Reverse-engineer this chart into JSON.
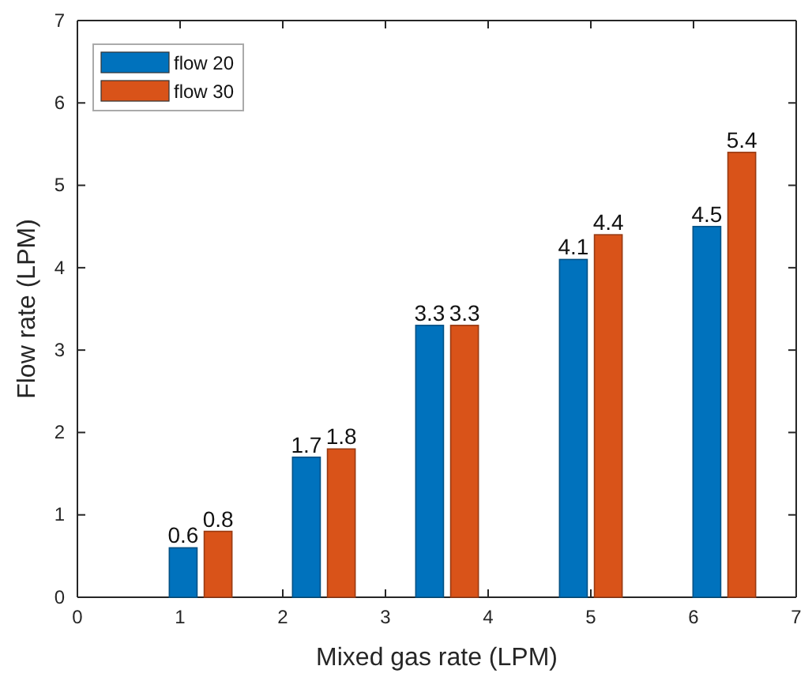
{
  "chart_data": {
    "type": "bar",
    "xlabel": "Mixed gas rate (LPM)",
    "ylabel": "Flow rate (LPM)",
    "x": [
      1.2,
      2.4,
      3.6,
      5,
      6.3
    ],
    "series": [
      {
        "name": "flow 20",
        "color": "#0072bd",
        "values": [
          0.6,
          1.7,
          3.3,
          4.1,
          4.5
        ]
      },
      {
        "name": "flow 30",
        "color": "#d95319",
        "values": [
          0.8,
          1.8,
          3.3,
          4.4,
          5.4
        ]
      }
    ],
    "xlim": [
      0,
      7
    ],
    "xticks": [
      0,
      1,
      2,
      3,
      4,
      5,
      6,
      7
    ],
    "ylim": [
      0,
      7
    ],
    "yticks": [
      0,
      1,
      2,
      3,
      4,
      5,
      6,
      7
    ],
    "data_labels": true,
    "legend": "top left"
  }
}
